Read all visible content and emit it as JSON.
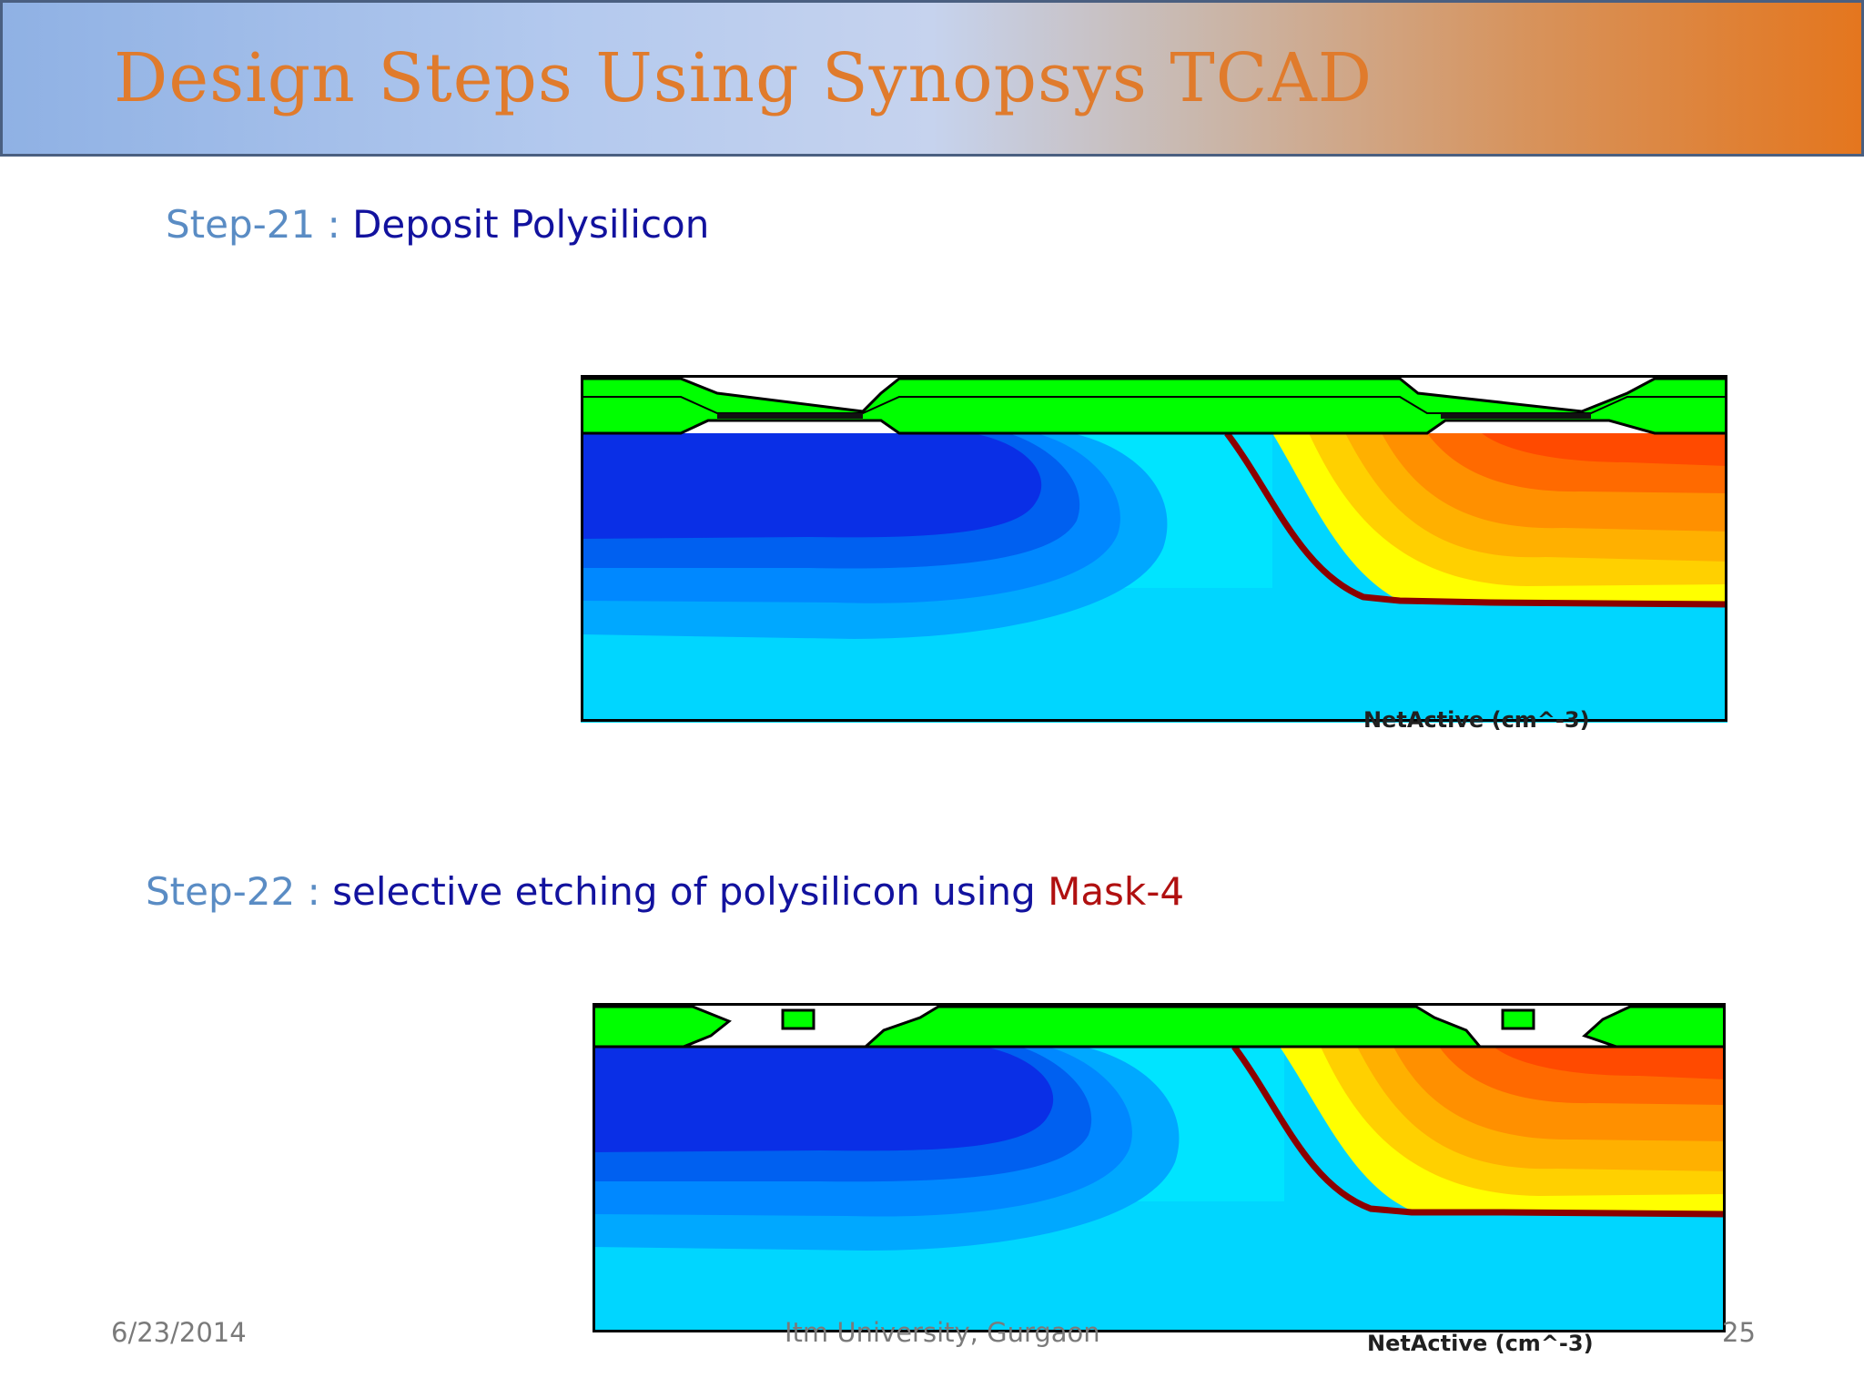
{
  "header": {
    "title": "Design Steps Using Synopsys TCAD"
  },
  "steps": [
    {
      "number": "Step-21 :",
      "description": "Deposit Polysilicon",
      "plot_label": "NetActive (cm^-3)"
    },
    {
      "number": "Step-22  :",
      "description": "selective etching of polysilicon using ",
      "mask": "Mask-4",
      "plot_label": "NetActive (cm^-3)"
    }
  ],
  "footer": {
    "date": "6/23/2014",
    "organization": "Itm University, Gurgaon",
    "page_number": "25"
  },
  "colors": {
    "title": "#e07b2c",
    "step_number": "#5a8cc4",
    "step_text": "#12129e",
    "mask_text": "#b01010",
    "oxide_poly": "#00ff00",
    "doping_blue_dark": "#0a2fe6",
    "doping_cyan": "#00d0ff",
    "doping_orange": "#ff5a00"
  }
}
